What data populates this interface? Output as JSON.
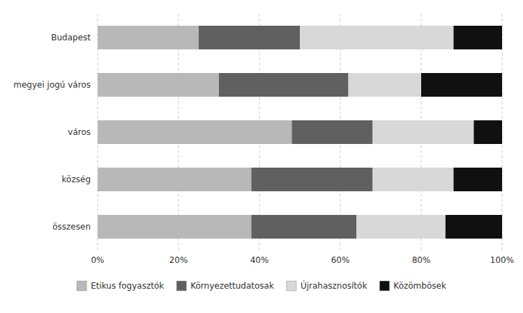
{
  "chart_data": {
    "type": "bar",
    "orientation": "horizontal",
    "stacked": true,
    "categories": [
      "összesen",
      "község",
      "város",
      "megyei jogú város",
      "Budapest"
    ],
    "series": [
      {
        "name": "Etikus fogyasztók",
        "color": "#b8b8b8",
        "values": [
          38,
          38,
          48,
          30,
          25
        ]
      },
      {
        "name": "Környezettudatosak",
        "color": "#606060",
        "values": [
          26,
          30,
          20,
          32,
          25
        ]
      },
      {
        "name": "Újrahasznosítók",
        "color": "#d8d8d8",
        "values": [
          22,
          20,
          25,
          18,
          38
        ]
      },
      {
        "name": "Közömbösek",
        "color": "#101010",
        "values": [
          14,
          12,
          7,
          20,
          12
        ]
      }
    ],
    "xlim": [
      0,
      100
    ],
    "xticks": [
      {
        "value": 0,
        "label": "0%"
      },
      {
        "value": 20,
        "label": "20%"
      },
      {
        "value": 40,
        "label": "40%"
      },
      {
        "value": 60,
        "label": "60%"
      },
      {
        "value": 80,
        "label": "80%"
      },
      {
        "value": 100,
        "label": "100%"
      }
    ],
    "grid": true,
    "legend": "bottom"
  }
}
